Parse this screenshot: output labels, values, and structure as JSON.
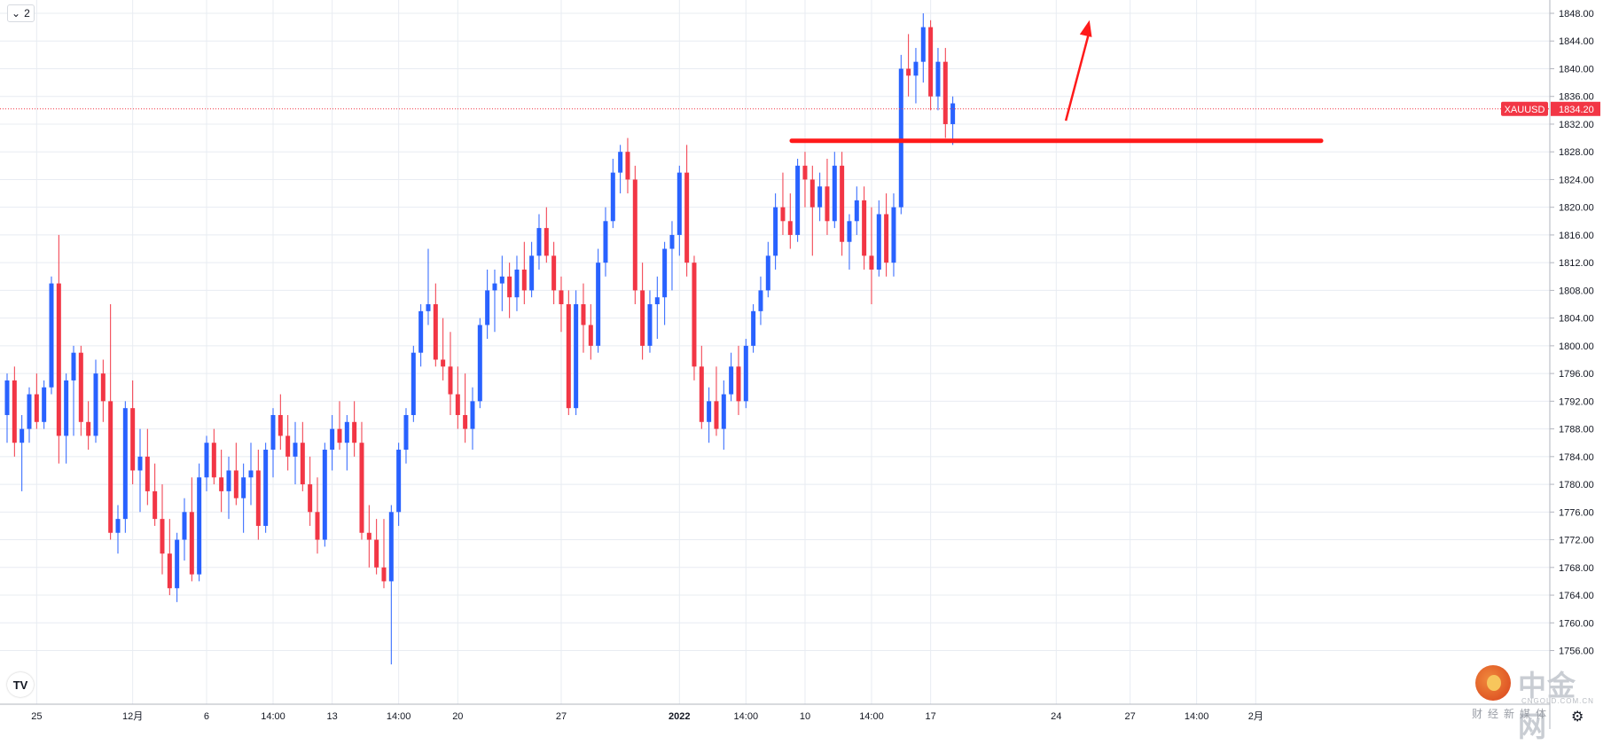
{
  "toolbar": {
    "interval_count": "2",
    "chevron_icon": "chevron-down-icon"
  },
  "logo": {
    "icon": "tradingview-logo-icon",
    "label": "TV"
  },
  "watermark": {
    "brand": "中金网",
    "domain": "CNGOLD.COM.CN",
    "slogan": "财经新媒体"
  },
  "settings": {
    "icon": "gear-icon"
  },
  "colors": {
    "up": "#2962ff",
    "down": "#f23645",
    "grid": "#e8ecf2",
    "price_tag": "#f23645",
    "annotation": "#ff1a1a"
  },
  "chart_data": {
    "type": "candlestick",
    "symbol": "XAUUSD",
    "last_price": "1834.20",
    "y_ticks": [
      "1848.00",
      "1844.00",
      "1840.00",
      "1836.00",
      "1832.00",
      "1828.00",
      "1824.00",
      "1820.00",
      "1816.00",
      "1812.00",
      "1808.00",
      "1804.00",
      "1800.00",
      "1796.00",
      "1792.00",
      "1788.00",
      "1784.00",
      "1780.00",
      "1776.00",
      "1772.00",
      "1768.00",
      "1764.00",
      "1760.00",
      "1756.00"
    ],
    "ylim": [
      1750,
      1850
    ],
    "x_ticks": [
      {
        "label": "25",
        "i": 4
      },
      {
        "label": "12月",
        "i": 17
      },
      {
        "label": "6",
        "i": 27
      },
      {
        "label": "14:00",
        "i": 36
      },
      {
        "label": "13",
        "i": 44
      },
      {
        "label": "14:00",
        "i": 53
      },
      {
        "label": "20",
        "i": 61
      },
      {
        "label": "27",
        "i": 75
      },
      {
        "label": "2022",
        "i": 91
      },
      {
        "label": "14:00",
        "i": 100
      },
      {
        "label": "10",
        "i": 108
      },
      {
        "label": "14:00",
        "i": 117
      },
      {
        "label": "17",
        "i": 125
      },
      {
        "label": "24",
        "i": 142
      },
      {
        "label": "27",
        "i": 152
      },
      {
        "label": "14:00",
        "i": 161
      },
      {
        "label": "2月",
        "i": 169
      }
    ],
    "support_level": 1829.6,
    "trend_arrow": {
      "from_i": 143.3,
      "from_price": 1832.5,
      "to_i": 146.5,
      "to_price": 1847.0
    },
    "candles": [
      [
        1790,
        1796,
        1786,
        1795
      ],
      [
        1795,
        1797,
        1784,
        1786
      ],
      [
        1786,
        1790,
        1779,
        1788
      ],
      [
        1788,
        1794,
        1786,
        1793
      ],
      [
        1793,
        1796,
        1788,
        1789
      ],
      [
        1789,
        1795,
        1788,
        1794
      ],
      [
        1794,
        1810,
        1793,
        1809
      ],
      [
        1809,
        1816,
        1783,
        1787
      ],
      [
        1787,
        1796,
        1783,
        1795
      ],
      [
        1795,
        1800,
        1787,
        1799
      ],
      [
        1799,
        1800,
        1787,
        1789
      ],
      [
        1789,
        1792,
        1785,
        1787
      ],
      [
        1787,
        1798,
        1786,
        1796
      ],
      [
        1796,
        1798,
        1789,
        1792
      ],
      [
        1792,
        1806,
        1772,
        1773
      ],
      [
        1773,
        1777,
        1770,
        1775
      ],
      [
        1775,
        1792,
        1773,
        1791
      ],
      [
        1791,
        1795,
        1780,
        1782
      ],
      [
        1782,
        1788,
        1776,
        1784
      ],
      [
        1784,
        1788,
        1777,
        1779
      ],
      [
        1779,
        1783,
        1774,
        1775
      ],
      [
        1775,
        1780,
        1767,
        1770
      ],
      [
        1770,
        1775,
        1764,
        1765
      ],
      [
        1765,
        1773,
        1763,
        1772
      ],
      [
        1772,
        1778,
        1769,
        1776
      ],
      [
        1776,
        1781,
        1766,
        1767
      ],
      [
        1767,
        1783,
        1766,
        1781
      ],
      [
        1781,
        1787,
        1779,
        1786
      ],
      [
        1786,
        1788,
        1780,
        1781
      ],
      [
        1781,
        1785,
        1776,
        1779
      ],
      [
        1779,
        1784,
        1775,
        1782
      ],
      [
        1782,
        1786,
        1777,
        1778
      ],
      [
        1778,
        1783,
        1773,
        1781
      ],
      [
        1781,
        1786,
        1777,
        1782
      ],
      [
        1782,
        1785,
        1772,
        1774
      ],
      [
        1774,
        1786,
        1773,
        1785
      ],
      [
        1785,
        1791,
        1781,
        1790
      ],
      [
        1790,
        1793,
        1785,
        1787
      ],
      [
        1787,
        1790,
        1782,
        1784
      ],
      [
        1784,
        1789,
        1780,
        1786
      ],
      [
        1786,
        1789,
        1779,
        1780
      ],
      [
        1780,
        1784,
        1774,
        1776
      ],
      [
        1776,
        1781,
        1770,
        1772
      ],
      [
        1772,
        1786,
        1771,
        1785
      ],
      [
        1785,
        1790,
        1782,
        1788
      ],
      [
        1788,
        1792,
        1785,
        1786
      ],
      [
        1786,
        1790,
        1782,
        1789
      ],
      [
        1789,
        1792,
        1784,
        1786
      ],
      [
        1786,
        1789,
        1772,
        1773
      ],
      [
        1773,
        1777,
        1768,
        1772
      ],
      [
        1772,
        1775,
        1767,
        1768
      ],
      [
        1768,
        1775,
        1765,
        1766
      ],
      [
        1766,
        1777,
        1754,
        1776
      ],
      [
        1776,
        1786,
        1774,
        1785
      ],
      [
        1785,
        1791,
        1783,
        1790
      ],
      [
        1790,
        1800,
        1789,
        1799
      ],
      [
        1799,
        1806,
        1797,
        1805
      ],
      [
        1805,
        1814,
        1803,
        1806
      ],
      [
        1806,
        1809,
        1797,
        1798
      ],
      [
        1798,
        1804,
        1795,
        1797
      ],
      [
        1797,
        1802,
        1790,
        1793
      ],
      [
        1793,
        1797,
        1788,
        1790
      ],
      [
        1790,
        1796,
        1786,
        1788
      ],
      [
        1788,
        1794,
        1785,
        1792
      ],
      [
        1792,
        1804,
        1791,
        1803
      ],
      [
        1803,
        1811,
        1801,
        1808
      ],
      [
        1808,
        1811,
        1802,
        1809
      ],
      [
        1809,
        1813,
        1805,
        1810
      ],
      [
        1810,
        1812,
        1804,
        1807
      ],
      [
        1807,
        1813,
        1805,
        1811
      ],
      [
        1811,
        1815,
        1806,
        1808
      ],
      [
        1808,
        1815,
        1807,
        1813
      ],
      [
        1813,
        1819,
        1811,
        1817
      ],
      [
        1817,
        1820,
        1812,
        1813
      ],
      [
        1813,
        1815,
        1806,
        1808
      ],
      [
        1808,
        1810,
        1802,
        1806
      ],
      [
        1806,
        1808,
        1790,
        1791
      ],
      [
        1791,
        1808,
        1790,
        1806
      ],
      [
        1806,
        1809,
        1799,
        1803
      ],
      [
        1803,
        1806,
        1798,
        1800
      ],
      [
        1800,
        1814,
        1799,
        1812
      ],
      [
        1812,
        1820,
        1810,
        1818
      ],
      [
        1818,
        1827,
        1817,
        1825
      ],
      [
        1825,
        1829,
        1822,
        1828
      ],
      [
        1828,
        1830,
        1822,
        1824
      ],
      [
        1824,
        1826,
        1806,
        1808
      ],
      [
        1808,
        1812,
        1798,
        1800
      ],
      [
        1800,
        1808,
        1799,
        1806
      ],
      [
        1806,
        1810,
        1801,
        1807
      ],
      [
        1807,
        1815,
        1803,
        1814
      ],
      [
        1814,
        1818,
        1808,
        1816
      ],
      [
        1816,
        1826,
        1813,
        1825
      ],
      [
        1825,
        1829,
        1810,
        1812
      ],
      [
        1812,
        1813,
        1795,
        1797
      ],
      [
        1797,
        1800,
        1788,
        1789
      ],
      [
        1789,
        1794,
        1786,
        1792
      ],
      [
        1792,
        1797,
        1787,
        1788
      ],
      [
        1788,
        1795,
        1785,
        1793
      ],
      [
        1793,
        1799,
        1792,
        1797
      ],
      [
        1797,
        1800,
        1790,
        1792
      ],
      [
        1792,
        1801,
        1791,
        1800
      ],
      [
        1800,
        1806,
        1799,
        1805
      ],
      [
        1805,
        1810,
        1803,
        1808
      ],
      [
        1808,
        1815,
        1807,
        1813
      ],
      [
        1813,
        1822,
        1811,
        1820
      ],
      [
        1820,
        1825,
        1816,
        1818
      ],
      [
        1818,
        1822,
        1814,
        1816
      ],
      [
        1816,
        1827,
        1815,
        1826
      ],
      [
        1826,
        1828,
        1820,
        1824
      ],
      [
        1824,
        1826,
        1813,
        1820
      ],
      [
        1820,
        1825,
        1818,
        1823
      ],
      [
        1823,
        1827,
        1816,
        1818
      ],
      [
        1818,
        1828,
        1817,
        1826
      ],
      [
        1826,
        1828,
        1813,
        1815
      ],
      [
        1815,
        1819,
        1811,
        1818
      ],
      [
        1818,
        1823,
        1816,
        1821
      ],
      [
        1821,
        1823,
        1811,
        1813
      ],
      [
        1813,
        1820,
        1806,
        1811
      ],
      [
        1811,
        1821,
        1810,
        1819
      ],
      [
        1819,
        1822,
        1810,
        1812
      ],
      [
        1812,
        1822,
        1810,
        1820
      ],
      [
        1820,
        1842,
        1819,
        1840
      ],
      [
        1840,
        1845,
        1836,
        1839
      ],
      [
        1839,
        1843,
        1835,
        1841
      ],
      [
        1841,
        1848,
        1838,
        1846
      ],
      [
        1846,
        1847,
        1834,
        1836
      ],
      [
        1836,
        1843,
        1834,
        1841
      ],
      [
        1841,
        1843,
        1830,
        1832
      ],
      [
        1832,
        1836,
        1829,
        1835
      ]
    ]
  }
}
